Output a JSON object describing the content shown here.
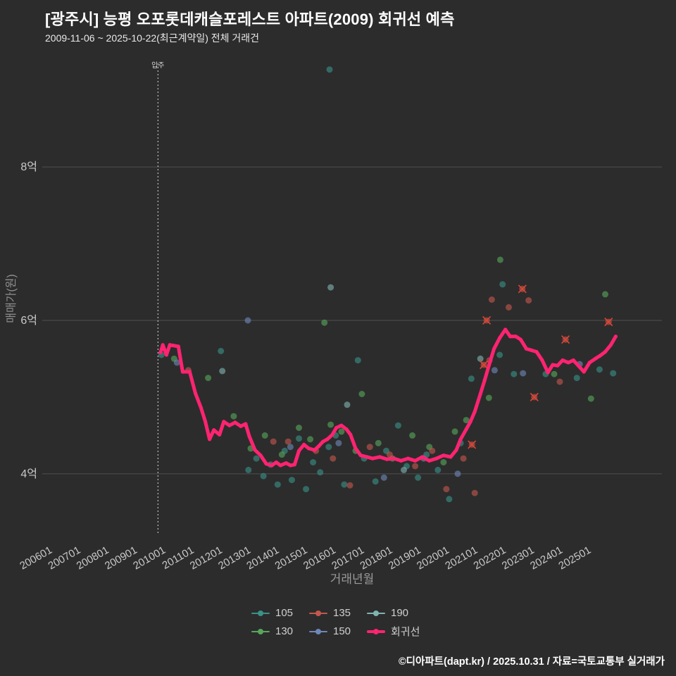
{
  "title": "[광주시] 능평 오포롯데캐슬포레스트 아파트(2009) 회귀선 예측",
  "subtitle": "2009-11-06 ~ 2025-10-22(최근계약일) 전체 거래건",
  "footer": "©디아파트(dapt.kr) / 2025.10.31 / 자료=국토교통부 실거래가",
  "colors": {
    "background": "#2c2c2c",
    "grid": "#4f4f4f",
    "tick": "#c9c9c9",
    "muted": "#8f8f8f",
    "annotation": "#d8d8d8"
  },
  "chart_data": {
    "type": "scatter",
    "title": "[광주시] 능평 오포롯데캐슬포레스트 아파트(2009) 회귀선 예측",
    "subtitle": "2009-11-06 ~ 2025-10-22(최근계약일) 전체 거래건",
    "xlabel": "거래년월",
    "ylabel": "매매가(원)",
    "grid": "horizontal-only",
    "legend_position": "bottom-center",
    "x_range": [
      2005.75,
      2027.6
    ],
    "y_range": [
      3.2,
      9.35
    ],
    "y_ticks": [
      {
        "value": 4,
        "label": "4억"
      },
      {
        "value": 6,
        "label": "6억"
      },
      {
        "value": 8,
        "label": "8억"
      }
    ],
    "x_ticks": [
      "200601",
      "200701",
      "200801",
      "200901",
      "201001",
      "201101",
      "201201",
      "201301",
      "201401",
      "201501",
      "201601",
      "201701",
      "201801",
      "201901",
      "202001",
      "202101",
      "202201",
      "202301",
      "202401",
      "202501"
    ],
    "annotation": {
      "x": 2009.83,
      "label": "입주",
      "style": "dotted-vertical"
    },
    "series": [
      {
        "name": "105",
        "color": "#3a9188",
        "points": [
          [
            2015.88,
            9.27
          ],
          [
            2009.95,
            5.55
          ],
          [
            2012.05,
            5.6
          ],
          [
            2013.02,
            4.05
          ],
          [
            2013.3,
            4.2
          ],
          [
            2013.55,
            3.97
          ],
          [
            2013.8,
            4.12
          ],
          [
            2014.05,
            3.86
          ],
          [
            2014.3,
            4.3
          ],
          [
            2014.55,
            3.92
          ],
          [
            2014.8,
            4.46
          ],
          [
            2015.05,
            3.8
          ],
          [
            2015.3,
            4.15
          ],
          [
            2015.55,
            4.02
          ],
          [
            2015.85,
            4.35
          ],
          [
            2016.1,
            4.5
          ],
          [
            2016.4,
            3.86
          ],
          [
            2016.88,
            5.48
          ],
          [
            2017.1,
            4.2
          ],
          [
            2017.5,
            3.9
          ],
          [
            2017.88,
            4.3
          ],
          [
            2018.3,
            4.63
          ],
          [
            2018.6,
            4.1
          ],
          [
            2019.0,
            3.95
          ],
          [
            2019.3,
            4.25
          ],
          [
            2019.7,
            4.05
          ],
          [
            2020.1,
            3.67
          ],
          [
            2020.5,
            4.4
          ],
          [
            2020.88,
            5.24
          ],
          [
            2021.88,
            5.55
          ],
          [
            2021.98,
            6.47
          ],
          [
            2022.38,
            5.3
          ],
          [
            2023.5,
            5.3
          ],
          [
            2024.6,
            5.25
          ],
          [
            2025.4,
            5.36
          ],
          [
            2025.88,
            5.31
          ]
        ]
      },
      {
        "name": "130",
        "color": "#57a75a",
        "points": [
          [
            2021.9,
            6.79
          ],
          [
            2025.6,
            6.34
          ],
          [
            2015.7,
            5.97
          ],
          [
            2010.4,
            5.5
          ],
          [
            2011.6,
            5.25
          ],
          [
            2012.5,
            4.75
          ],
          [
            2013.1,
            4.33
          ],
          [
            2013.6,
            4.5
          ],
          [
            2014.2,
            4.25
          ],
          [
            2014.8,
            4.6
          ],
          [
            2015.2,
            4.45
          ],
          [
            2015.92,
            4.64
          ],
          [
            2016.3,
            4.55
          ],
          [
            2016.8,
            4.3
          ],
          [
            2017.02,
            5.04
          ],
          [
            2017.6,
            4.4
          ],
          [
            2018.1,
            4.2
          ],
          [
            2018.8,
            4.5
          ],
          [
            2019.4,
            4.35
          ],
          [
            2019.9,
            4.15
          ],
          [
            2020.3,
            4.55
          ],
          [
            2020.7,
            4.7
          ],
          [
            2021.5,
            4.99
          ],
          [
            2023.8,
            5.3
          ],
          [
            2025.1,
            4.98
          ]
        ]
      },
      {
        "name": "135",
        "color": "#c4574e",
        "points": [
          [
            2022.9,
            6.26
          ],
          [
            2021.6,
            6.27
          ],
          [
            2021.52,
            5.48
          ],
          [
            2010.9,
            5.35
          ],
          [
            2013.9,
            4.42
          ],
          [
            2014.42,
            4.42
          ],
          [
            2015.4,
            4.3
          ],
          [
            2016.0,
            4.2
          ],
          [
            2016.6,
            3.85
          ],
          [
            2017.3,
            4.35
          ],
          [
            2018.0,
            4.25
          ],
          [
            2018.9,
            4.1
          ],
          [
            2019.5,
            4.3
          ],
          [
            2020.0,
            3.8
          ],
          [
            2020.6,
            4.2
          ],
          [
            2021.0,
            3.75
          ],
          [
            2022.2,
            6.17
          ],
          [
            2024.0,
            5.2
          ],
          [
            2020.9,
            4.38
          ],
          [
            2021.32,
            5.42
          ],
          [
            2021.42,
            6.0
          ],
          [
            2022.68,
            6.41
          ],
          [
            2023.1,
            5.0
          ],
          [
            2024.2,
            5.75
          ],
          [
            2025.72,
            5.98
          ]
        ]
      },
      {
        "name": "150",
        "color": "#6d87b8",
        "points": [
          [
            2013.0,
            6.0
          ],
          [
            2010.5,
            5.45
          ],
          [
            2014.5,
            4.35
          ],
          [
            2016.2,
            4.4
          ],
          [
            2017.8,
            3.95
          ],
          [
            2019.2,
            4.2
          ],
          [
            2020.4,
            4.0
          ],
          [
            2021.7,
            5.35
          ],
          [
            2022.7,
            5.31
          ],
          [
            2024.7,
            5.43
          ]
        ]
      },
      {
        "name": "190",
        "color": "#7fb3b0",
        "points": [
          [
            2015.92,
            6.43
          ],
          [
            2016.5,
            4.9
          ],
          [
            2018.5,
            4.05
          ],
          [
            2021.2,
            5.5
          ],
          [
            2012.1,
            5.34
          ]
        ]
      }
    ],
    "outlier_x_marks": {
      "color": "#e64333",
      "points": [
        [
          2020.9,
          4.38
        ],
        [
          2021.32,
          5.42
        ],
        [
          2021.42,
          6.0
        ],
        [
          2022.68,
          6.41
        ],
        [
          2023.1,
          5.0
        ],
        [
          2024.2,
          5.75
        ],
        [
          2025.72,
          5.98
        ]
      ]
    },
    "regression": {
      "name": "회귀선",
      "color": "#ff2371",
      "points": [
        [
          2009.92,
          5.58
        ],
        [
          2010.0,
          5.68
        ],
        [
          2010.13,
          5.55
        ],
        [
          2010.25,
          5.68
        ],
        [
          2010.55,
          5.66
        ],
        [
          2010.7,
          5.33
        ],
        [
          2010.95,
          5.33
        ],
        [
          2011.15,
          5.05
        ],
        [
          2011.35,
          4.86
        ],
        [
          2011.5,
          4.68
        ],
        [
          2011.65,
          4.45
        ],
        [
          2011.8,
          4.57
        ],
        [
          2012.0,
          4.51
        ],
        [
          2012.15,
          4.68
        ],
        [
          2012.35,
          4.63
        ],
        [
          2012.55,
          4.67
        ],
        [
          2012.75,
          4.62
        ],
        [
          2012.92,
          4.65
        ],
        [
          2013.05,
          4.49
        ],
        [
          2013.25,
          4.31
        ],
        [
          2013.45,
          4.24
        ],
        [
          2013.65,
          4.13
        ],
        [
          2013.85,
          4.11
        ],
        [
          2014.0,
          4.15
        ],
        [
          2014.15,
          4.11
        ],
        [
          2014.35,
          4.14
        ],
        [
          2014.5,
          4.11
        ],
        [
          2014.65,
          4.12
        ],
        [
          2014.8,
          4.3
        ],
        [
          2014.98,
          4.38
        ],
        [
          2015.15,
          4.33
        ],
        [
          2015.35,
          4.31
        ],
        [
          2015.5,
          4.36
        ],
        [
          2015.65,
          4.42
        ],
        [
          2015.8,
          4.45
        ],
        [
          2015.98,
          4.51
        ],
        [
          2016.12,
          4.6
        ],
        [
          2016.3,
          4.63
        ],
        [
          2016.48,
          4.58
        ],
        [
          2016.62,
          4.51
        ],
        [
          2016.8,
          4.33
        ],
        [
          2016.98,
          4.24
        ],
        [
          2017.2,
          4.22
        ],
        [
          2017.4,
          4.2
        ],
        [
          2017.65,
          4.22
        ],
        [
          2017.9,
          4.19
        ],
        [
          2018.15,
          4.2
        ],
        [
          2018.4,
          4.17
        ],
        [
          2018.65,
          4.2
        ],
        [
          2018.9,
          4.17
        ],
        [
          2019.15,
          4.22
        ],
        [
          2019.4,
          4.17
        ],
        [
          2019.65,
          4.2
        ],
        [
          2019.9,
          4.24
        ],
        [
          2020.15,
          4.22
        ],
        [
          2020.35,
          4.31
        ],
        [
          2020.5,
          4.45
        ],
        [
          2020.7,
          4.58
        ],
        [
          2020.85,
          4.68
        ],
        [
          2021.0,
          4.81
        ],
        [
          2021.2,
          5.04
        ],
        [
          2021.35,
          5.22
        ],
        [
          2021.5,
          5.41
        ],
        [
          2021.68,
          5.63
        ],
        [
          2021.88,
          5.77
        ],
        [
          2022.08,
          5.88
        ],
        [
          2022.25,
          5.79
        ],
        [
          2022.45,
          5.79
        ],
        [
          2022.62,
          5.75
        ],
        [
          2022.82,
          5.63
        ],
        [
          2023.0,
          5.61
        ],
        [
          2023.18,
          5.59
        ],
        [
          2023.38,
          5.48
        ],
        [
          2023.58,
          5.32
        ],
        [
          2023.75,
          5.42
        ],
        [
          2023.92,
          5.41
        ],
        [
          2024.1,
          5.48
        ],
        [
          2024.3,
          5.45
        ],
        [
          2024.48,
          5.48
        ],
        [
          2024.65,
          5.41
        ],
        [
          2024.85,
          5.33
        ],
        [
          2025.05,
          5.45
        ],
        [
          2025.25,
          5.5
        ],
        [
          2025.42,
          5.54
        ],
        [
          2025.6,
          5.59
        ],
        [
          2025.8,
          5.68
        ],
        [
          2025.97,
          5.79
        ]
      ]
    },
    "legend_rows": [
      [
        "105",
        "135",
        "190"
      ],
      [
        "130",
        "150",
        "회귀선"
      ]
    ]
  }
}
